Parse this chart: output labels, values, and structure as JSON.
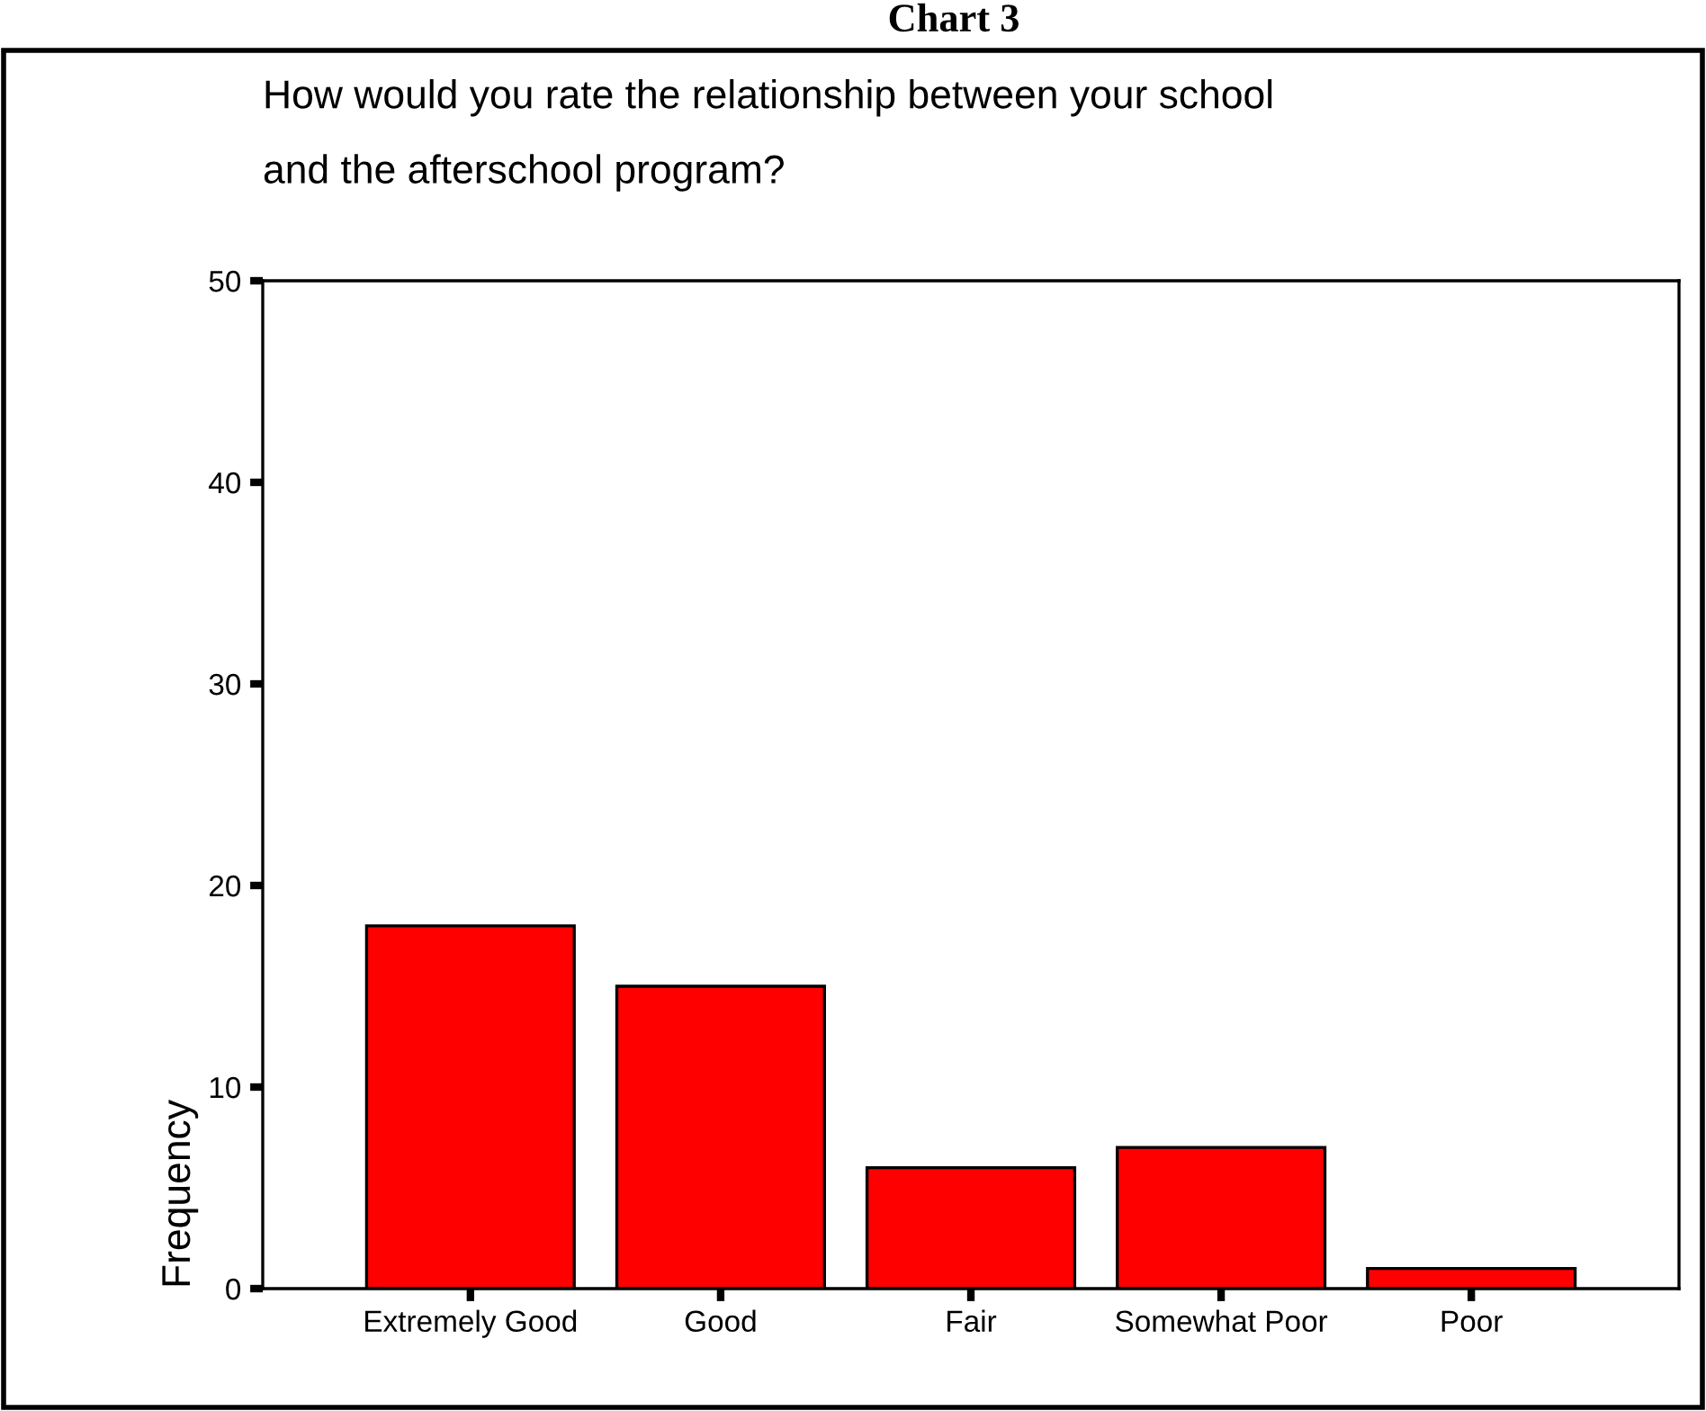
{
  "chart_data": {
    "type": "bar",
    "title": "Chart 3",
    "subtitle": "How would you rate the relationship between your school\nand the afterschool program?",
    "ylabel": "Frequency",
    "categories": [
      "Extremely Good",
      "Good",
      "Fair",
      "Somewhat Poor",
      "Poor"
    ],
    "values": [
      18,
      15,
      6,
      7,
      1
    ],
    "color": "#ff0000",
    "ylim": [
      0,
      50
    ],
    "yticks": [
      0,
      10,
      20,
      30,
      40,
      50
    ],
    "grid": false
  }
}
